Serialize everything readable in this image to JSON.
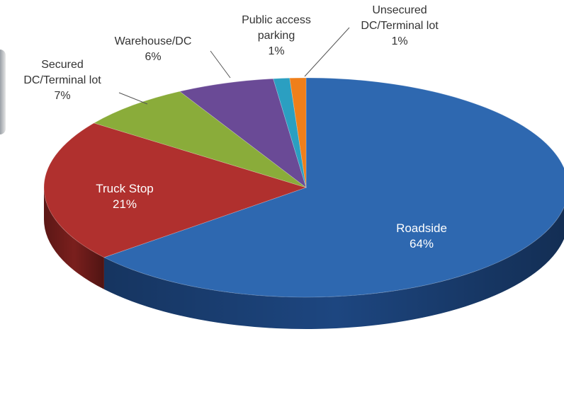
{
  "chart_data": {
    "type": "pie",
    "title": "",
    "three_d": true,
    "legend": "none",
    "slices": [
      {
        "label_lines": [
          "Roadside"
        ],
        "percent_label": "64%",
        "value": 64,
        "color": "#2e68b0",
        "side_color": "#1d4680",
        "label_position": "inside"
      },
      {
        "label_lines": [
          "Truck Stop"
        ],
        "percent_label": "21%",
        "value": 21,
        "color": "#b0302e",
        "side_color": "#7a1f1d",
        "label_position": "inside"
      },
      {
        "label_lines": [
          "Secured",
          "DC/Terminal lot"
        ],
        "percent_label": "7%",
        "value": 7,
        "color": "#8aac3a",
        "side_color": "#5f7a24",
        "label_position": "outside"
      },
      {
        "label_lines": [
          "Warehouse/DC"
        ],
        "percent_label": "6%",
        "value": 6,
        "color": "#6a4a96",
        "side_color": "#47306a",
        "label_position": "outside"
      },
      {
        "label_lines": [
          "Public access",
          "parking"
        ],
        "percent_label": "1%",
        "value": 1,
        "color": "#2b9fc1",
        "side_color": "#1b6f88",
        "label_position": "outside"
      },
      {
        "label_lines": [
          "Unsecured",
          "DC/Terminal lot"
        ],
        "percent_label": "1%",
        "value": 1,
        "color": "#ef7f1a",
        "side_color": "#b25b0f",
        "label_position": "outside"
      }
    ]
  }
}
